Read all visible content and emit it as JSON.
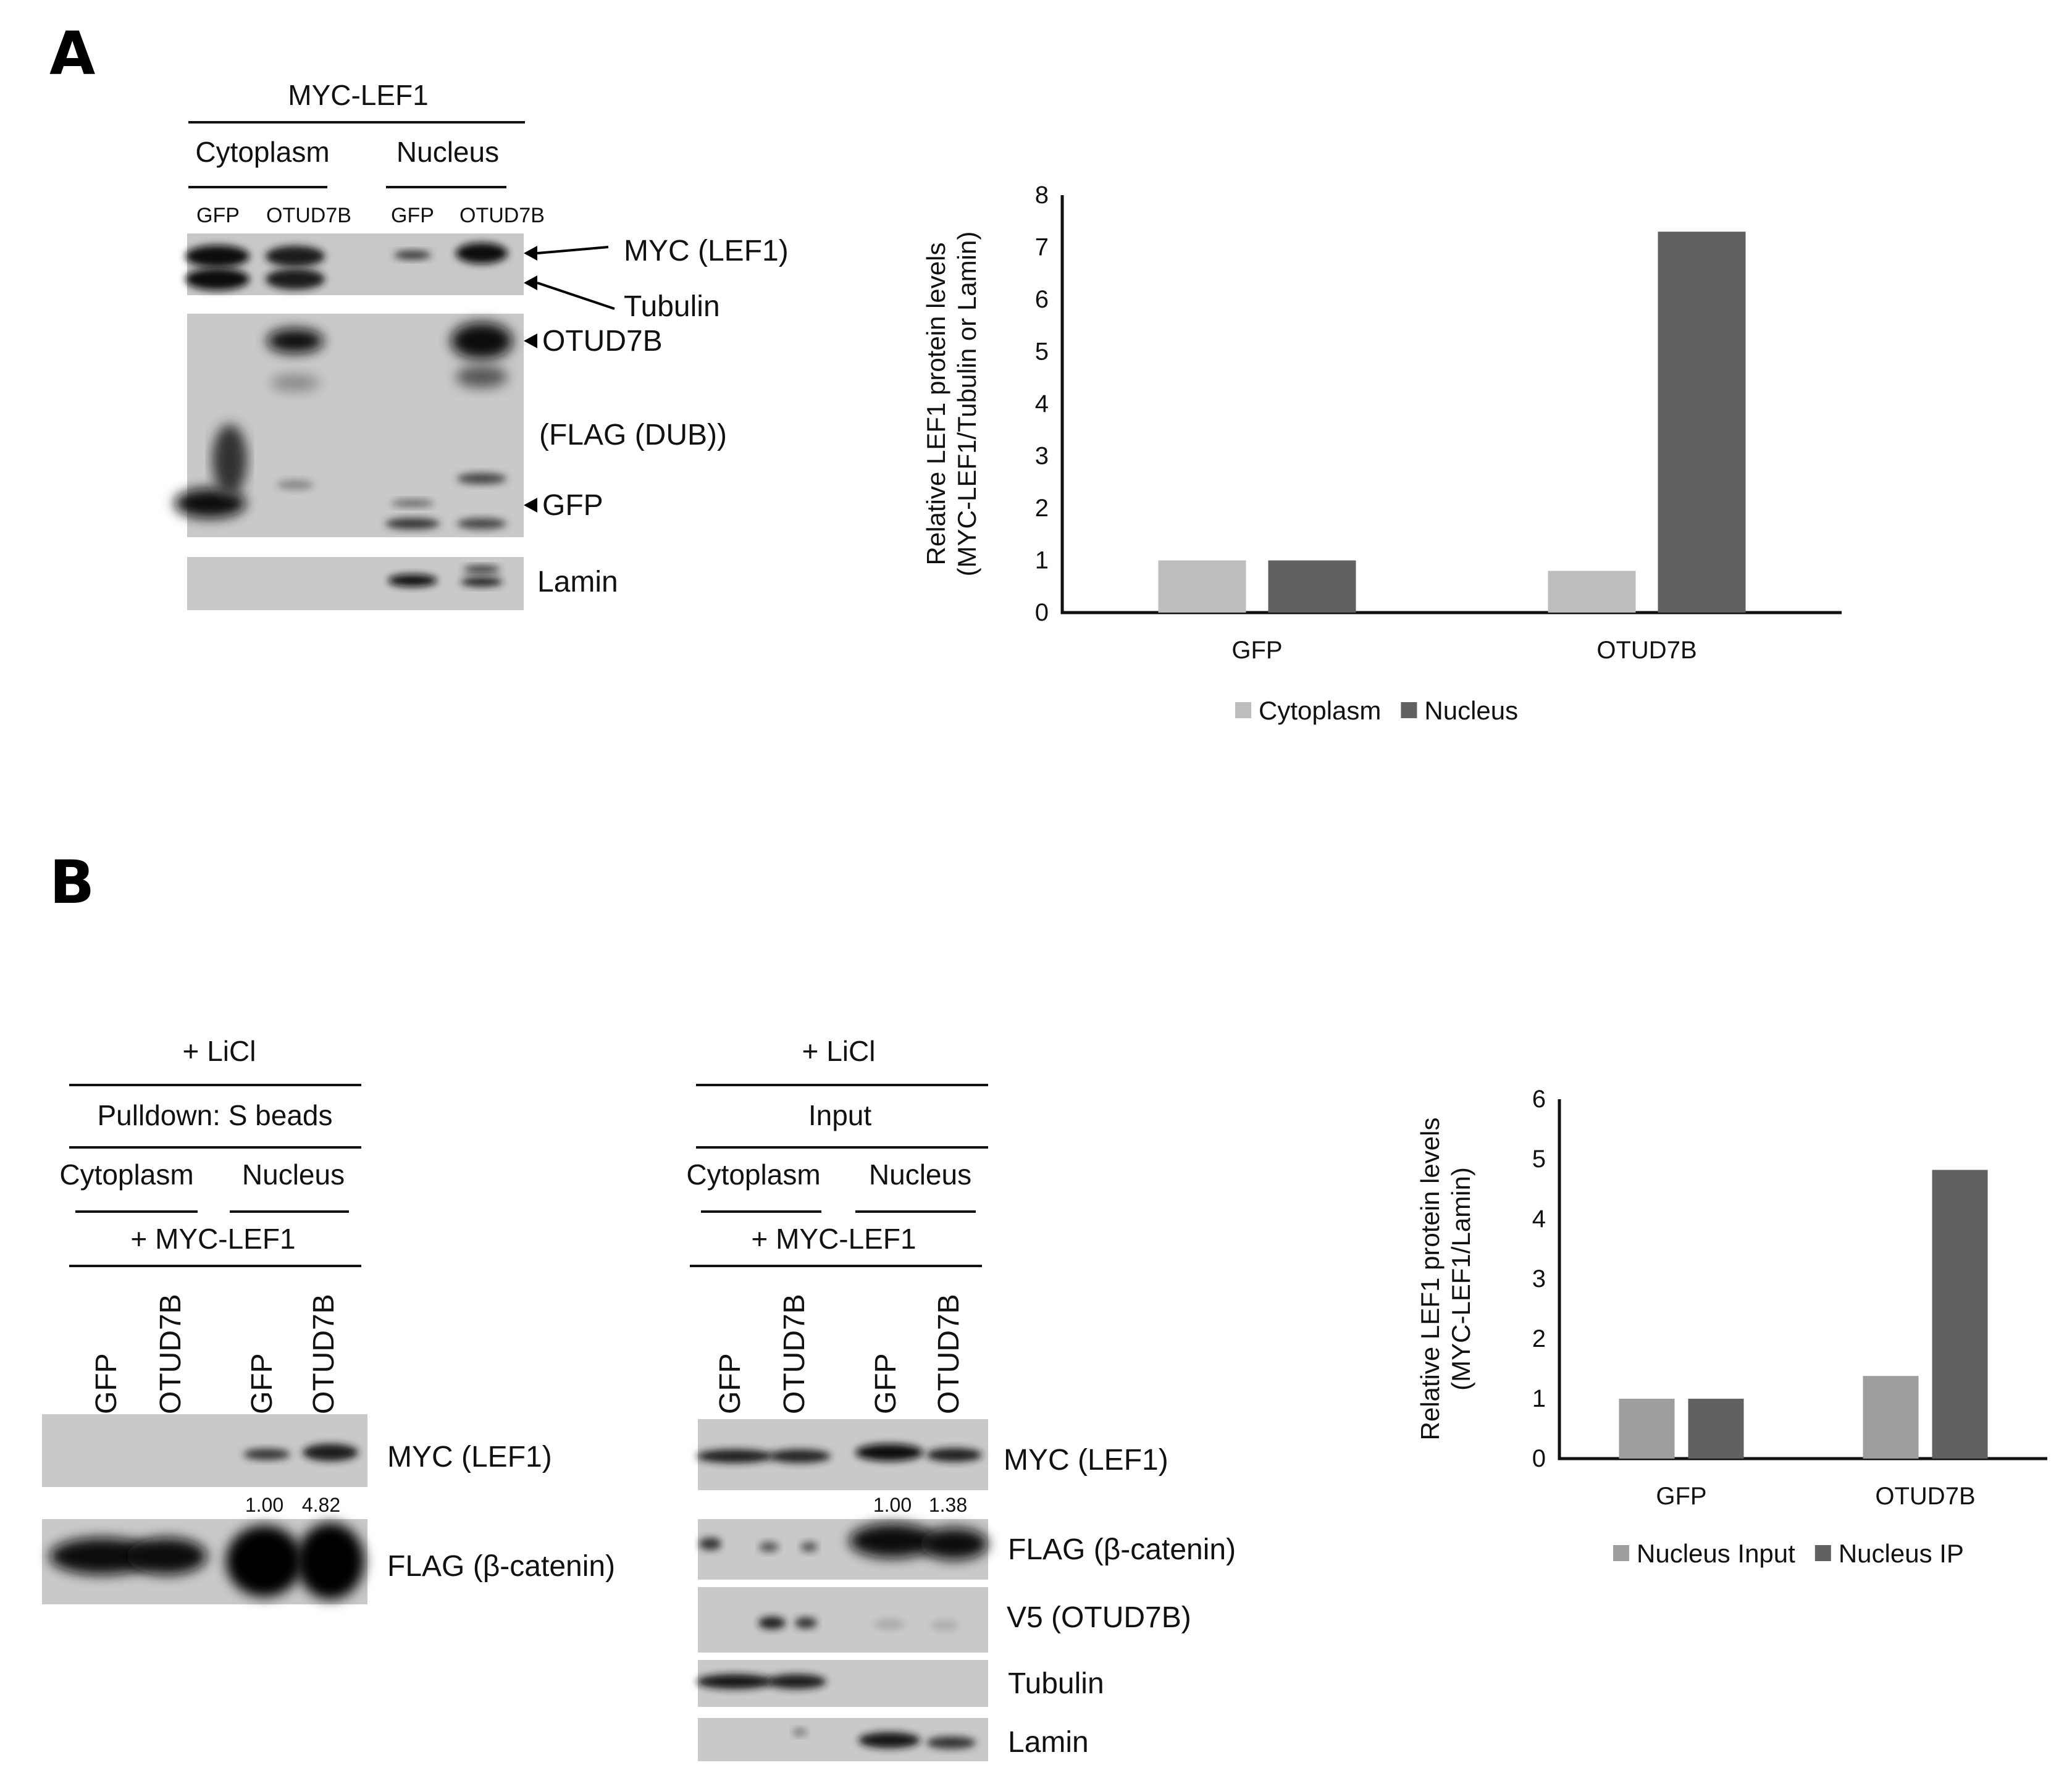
{
  "panel_a": {
    "label": "A",
    "header_top": "MYC-LEF1",
    "groups": [
      "Cytoplasm",
      "Nucleus"
    ],
    "lanes": [
      "GFP",
      "OTUD7B",
      "GFP",
      "OTUD7B"
    ],
    "blot_labels": {
      "myc": "MYC (LEF1)",
      "tubulin": "Tubulin",
      "otud7b": "OTUD7B",
      "flag": "(FLAG (DUB))",
      "gfp": "GFP",
      "lamin": "Lamin"
    }
  },
  "panel_b": {
    "label": "B",
    "left_blot": {
      "header1": "+ LiCl",
      "header2": "Pulldown: S beads",
      "groups": [
        "Cytoplasm",
        "Nucleus"
      ],
      "header3": "+ MYC-LEF1",
      "lanes": [
        "GFP",
        "OTUD7B",
        "GFP",
        "OTUD7B"
      ],
      "quant": [
        "1.00",
        "4.82"
      ],
      "labels": {
        "myc": "MYC (LEF1)",
        "flag": "FLAG (β-catenin)"
      }
    },
    "mid_blot": {
      "header1": "+ LiCl",
      "header2": "Input",
      "groups": [
        "Cytoplasm",
        "Nucleus"
      ],
      "header3": "+ MYC-LEF1",
      "lanes": [
        "GFP",
        "OTUD7B",
        "GFP",
        "OTUD7B"
      ],
      "quant": [
        "1.00",
        "1.38"
      ],
      "labels": {
        "myc": "MYC (LEF1)",
        "flag": "FLAG (β-catenin)",
        "v5": "V5 (OTUD7B)",
        "tubulin": "Tubulin",
        "lamin": "Lamin"
      }
    }
  },
  "chart_data": [
    {
      "type": "bar",
      "panel": "A",
      "categories": [
        "GFP",
        "OTUD7B"
      ],
      "series": [
        {
          "name": "Cytoplasm",
          "values": [
            1.0,
            0.8
          ],
          "color": "#bdbdbd"
        },
        {
          "name": "Nucleus",
          "values": [
            1.0,
            7.3
          ],
          "color": "#616161"
        }
      ],
      "ylabel_line1": "Relative LEF1 protein levels",
      "ylabel_line2": "(MYC-LEF1/Tubulin or Lamin)",
      "ylim": [
        0,
        8
      ],
      "yticks": [
        "0",
        "1",
        "2",
        "3",
        "4",
        "5",
        "6",
        "7",
        "8"
      ],
      "legend_position": "bottom",
      "grid": false
    },
    {
      "type": "bar",
      "panel": "B",
      "categories": [
        "GFP",
        "OTUD7B"
      ],
      "series": [
        {
          "name": "Nucleus Input",
          "values": [
            1.0,
            1.38
          ],
          "color": "#9e9e9e"
        },
        {
          "name": "Nucleus IP",
          "values": [
            1.0,
            4.82
          ],
          "color": "#616161"
        }
      ],
      "ylabel_line1": "Relative LEF1 protein levels",
      "ylabel_line2": "(MYC-LEF1/Lamin)",
      "ylim": [
        0,
        6
      ],
      "yticks": [
        "0",
        "1",
        "2",
        "3",
        "4",
        "5",
        "6"
      ],
      "legend_position": "bottom",
      "grid": false
    }
  ]
}
